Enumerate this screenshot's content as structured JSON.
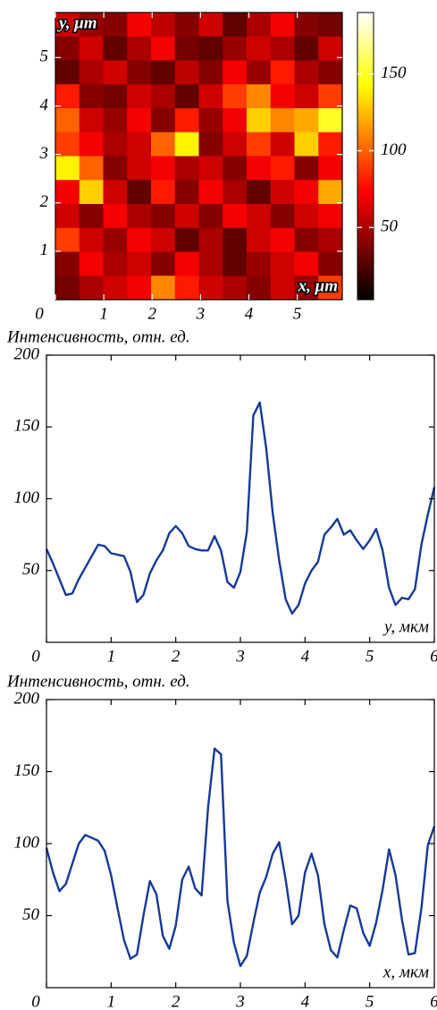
{
  "chart_data": [
    {
      "type": "heatmap",
      "xlabel": "x, μm",
      "ylabel": "y, μm",
      "xlim": [
        0,
        5.93
      ],
      "ylim": [
        0,
        5.93
      ],
      "xticks": [
        0,
        1,
        2,
        3,
        4,
        5
      ],
      "yticks": [
        1,
        2,
        3,
        4,
        5
      ],
      "colormap": "hot",
      "clim": [
        3,
        190
      ],
      "cticks": [
        50,
        100,
        150
      ],
      "z": [
        [
          60,
          45,
          40,
          70,
          55,
          40,
          60,
          30,
          50,
          70,
          40,
          35
        ],
        [
          40,
          60,
          30,
          50,
          70,
          35,
          30,
          45,
          60,
          50,
          30,
          60
        ],
        [
          30,
          50,
          60,
          40,
          30,
          55,
          40,
          70,
          45,
          80,
          50,
          40
        ],
        [
          80,
          40,
          35,
          60,
          50,
          30,
          60,
          90,
          110,
          70,
          60,
          90
        ],
        [
          100,
          60,
          45,
          70,
          40,
          80,
          45,
          70,
          130,
          110,
          120,
          150
        ],
        [
          90,
          70,
          50,
          60,
          100,
          140,
          40,
          60,
          90,
          60,
          130,
          80
        ],
        [
          140,
          100,
          40,
          60,
          70,
          50,
          60,
          40,
          70,
          80,
          40,
          70
        ],
        [
          70,
          130,
          60,
          30,
          80,
          40,
          70,
          50,
          30,
          60,
          70,
          120
        ],
        [
          60,
          40,
          70,
          50,
          40,
          60,
          40,
          70,
          60,
          40,
          60,
          70
        ],
        [
          90,
          60,
          45,
          70,
          60,
          30,
          50,
          30,
          60,
          70,
          40,
          50
        ],
        [
          40,
          70,
          50,
          60,
          40,
          70,
          50,
          30,
          45,
          60,
          70,
          40
        ],
        [
          35,
          50,
          60,
          70,
          110,
          80,
          60,
          50,
          40,
          60,
          45,
          90
        ]
      ]
    },
    {
      "type": "line",
      "ylabel": "Интенсивность, отн. ед.",
      "xlabel": "y, мкм",
      "xlim": [
        0,
        6
      ],
      "ylim": [
        0,
        200
      ],
      "xticks": [
        0,
        1,
        2,
        3,
        4,
        5,
        6
      ],
      "yticks": [
        50,
        100,
        150,
        200
      ],
      "x": [
        0,
        0.1,
        0.2,
        0.3,
        0.4,
        0.5,
        0.6,
        0.7,
        0.8,
        0.9,
        1,
        1.1,
        1.2,
        1.3,
        1.4,
        1.5,
        1.6,
        1.7,
        1.8,
        1.9,
        2,
        2.1,
        2.2,
        2.3,
        2.4,
        2.5,
        2.6,
        2.7,
        2.8,
        2.9,
        3,
        3.1,
        3.2,
        3.3,
        3.4,
        3.5,
        3.6,
        3.7,
        3.8,
        3.9,
        4,
        4.1,
        4.2,
        4.3,
        4.4,
        4.5,
        4.6,
        4.7,
        4.8,
        4.9,
        5,
        5.1,
        5.2,
        5.3,
        5.4,
        5.5,
        5.6,
        5.7,
        5.8,
        5.9,
        6
      ],
      "series": [
        {
          "color": "#17399a",
          "values": [
            65,
            55,
            44,
            33,
            34,
            44,
            52,
            60,
            68,
            67,
            62,
            61,
            60,
            49,
            28,
            33,
            48,
            57,
            64,
            76,
            81,
            76,
            67,
            65,
            64,
            64,
            74,
            64,
            42,
            38,
            49,
            77,
            158,
            167,
            135,
            90,
            57,
            30,
            20,
            26,
            41,
            50,
            56,
            75,
            80,
            86,
            75,
            78,
            71,
            65,
            71,
            79,
            64,
            38,
            26,
            31,
            30,
            37,
            68,
            89,
            108
          ]
        }
      ]
    },
    {
      "type": "line",
      "ylabel": "Интенсивность, отн. ед.",
      "xlabel": "x, мкм",
      "xlim": [
        0,
        6
      ],
      "ylim": [
        0,
        200
      ],
      "xticks": [
        0,
        1,
        2,
        3,
        4,
        5,
        6
      ],
      "yticks": [
        50,
        100,
        150,
        200
      ],
      "x": [
        0,
        0.1,
        0.2,
        0.3,
        0.4,
        0.5,
        0.6,
        0.7,
        0.8,
        0.9,
        1,
        1.1,
        1.2,
        1.3,
        1.4,
        1.5,
        1.6,
        1.7,
        1.8,
        1.9,
        2,
        2.1,
        2.2,
        2.3,
        2.4,
        2.5,
        2.6,
        2.7,
        2.8,
        2.9,
        3,
        3.1,
        3.2,
        3.3,
        3.4,
        3.5,
        3.6,
        3.7,
        3.8,
        3.9,
        4,
        4.1,
        4.2,
        4.3,
        4.4,
        4.5,
        4.6,
        4.7,
        4.8,
        4.9,
        5,
        5.1,
        5.2,
        5.3,
        5.4,
        5.5,
        5.6,
        5.7,
        5.8,
        5.9,
        6
      ],
      "series": [
        {
          "color": "#17399a",
          "values": [
            97,
            80,
            67,
            72,
            86,
            100,
            106,
            104,
            102,
            95,
            78,
            55,
            33,
            20,
            23,
            50,
            74,
            65,
            36,
            27,
            43,
            75,
            84,
            69,
            64,
            125,
            166,
            162,
            60,
            31,
            15,
            22,
            45,
            66,
            77,
            93,
            101,
            75,
            44,
            50,
            80,
            93,
            78,
            44,
            26,
            21,
            40,
            57,
            55,
            38,
            29,
            45,
            68,
            96,
            78,
            47,
            23,
            24,
            55,
            99,
            112
          ]
        }
      ]
    }
  ]
}
